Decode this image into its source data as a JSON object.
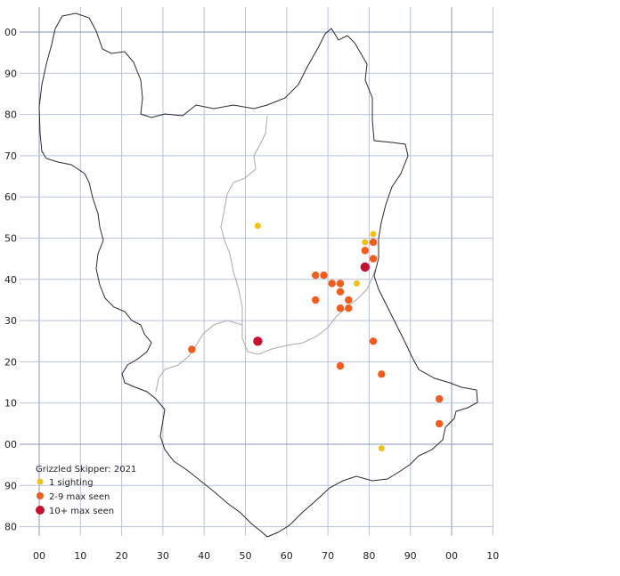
{
  "legend": {
    "title": "Grizzled Skipper:  2021",
    "entries": [
      {
        "label": "1 sighting",
        "color": "#f2c01a",
        "size": "small"
      },
      {
        "label": "2-9 max seen",
        "color": "#f25c1f",
        "size": "medium"
      },
      {
        "label": "10+ max seen",
        "color": "#c4112f",
        "size": "large"
      }
    ]
  },
  "grid": {
    "x_labels": [
      "00",
      "10",
      "20",
      "30",
      "40",
      "50",
      "60",
      "70",
      "80",
      "90",
      "00",
      "10"
    ],
    "y_labels": [
      "00",
      "90",
      "80",
      "70",
      "60",
      "50",
      "40",
      "30",
      "20",
      "10",
      "00",
      "90",
      "80"
    ],
    "major_x_label": "00",
    "major_y_label": "00"
  },
  "colors": {
    "grid": "#b8c2dc",
    "grid_major": "#8a96bd",
    "county_outline": "#2a2a2a",
    "district_boundary": "#a9a9a9"
  },
  "sightings": [
    {
      "e": 53,
      "n": 53,
      "cat": 0
    },
    {
      "e": 81,
      "n": 51,
      "cat": 0
    },
    {
      "e": 79,
      "n": 49,
      "cat": 0
    },
    {
      "e": 77,
      "n": 39,
      "cat": 0
    },
    {
      "e": 83,
      "n": -1,
      "cat": 0
    },
    {
      "e": 81,
      "n": 49,
      "cat": 1
    },
    {
      "e": 79,
      "n": 47,
      "cat": 1
    },
    {
      "e": 81,
      "n": 45,
      "cat": 1
    },
    {
      "e": 67,
      "n": 41,
      "cat": 1
    },
    {
      "e": 69,
      "n": 41,
      "cat": 1
    },
    {
      "e": 71,
      "n": 39,
      "cat": 1
    },
    {
      "e": 73,
      "n": 39,
      "cat": 1
    },
    {
      "e": 73,
      "n": 37,
      "cat": 1
    },
    {
      "e": 67,
      "n": 35,
      "cat": 1
    },
    {
      "e": 75,
      "n": 35,
      "cat": 1
    },
    {
      "e": 73,
      "n": 33,
      "cat": 1
    },
    {
      "e": 75,
      "n": 33,
      "cat": 1
    },
    {
      "e": 81,
      "n": 25,
      "cat": 1
    },
    {
      "e": 37,
      "n": 23,
      "cat": 1
    },
    {
      "e": 73,
      "n": 19,
      "cat": 1
    },
    {
      "e": 83,
      "n": 17,
      "cat": 1
    },
    {
      "e": 97,
      "n": 11,
      "cat": 1
    },
    {
      "e": 97,
      "n": 5,
      "cat": 1
    },
    {
      "e": 79,
      "n": 43,
      "cat": 2
    },
    {
      "e": 53,
      "n": 25,
      "cat": 2
    }
  ]
}
